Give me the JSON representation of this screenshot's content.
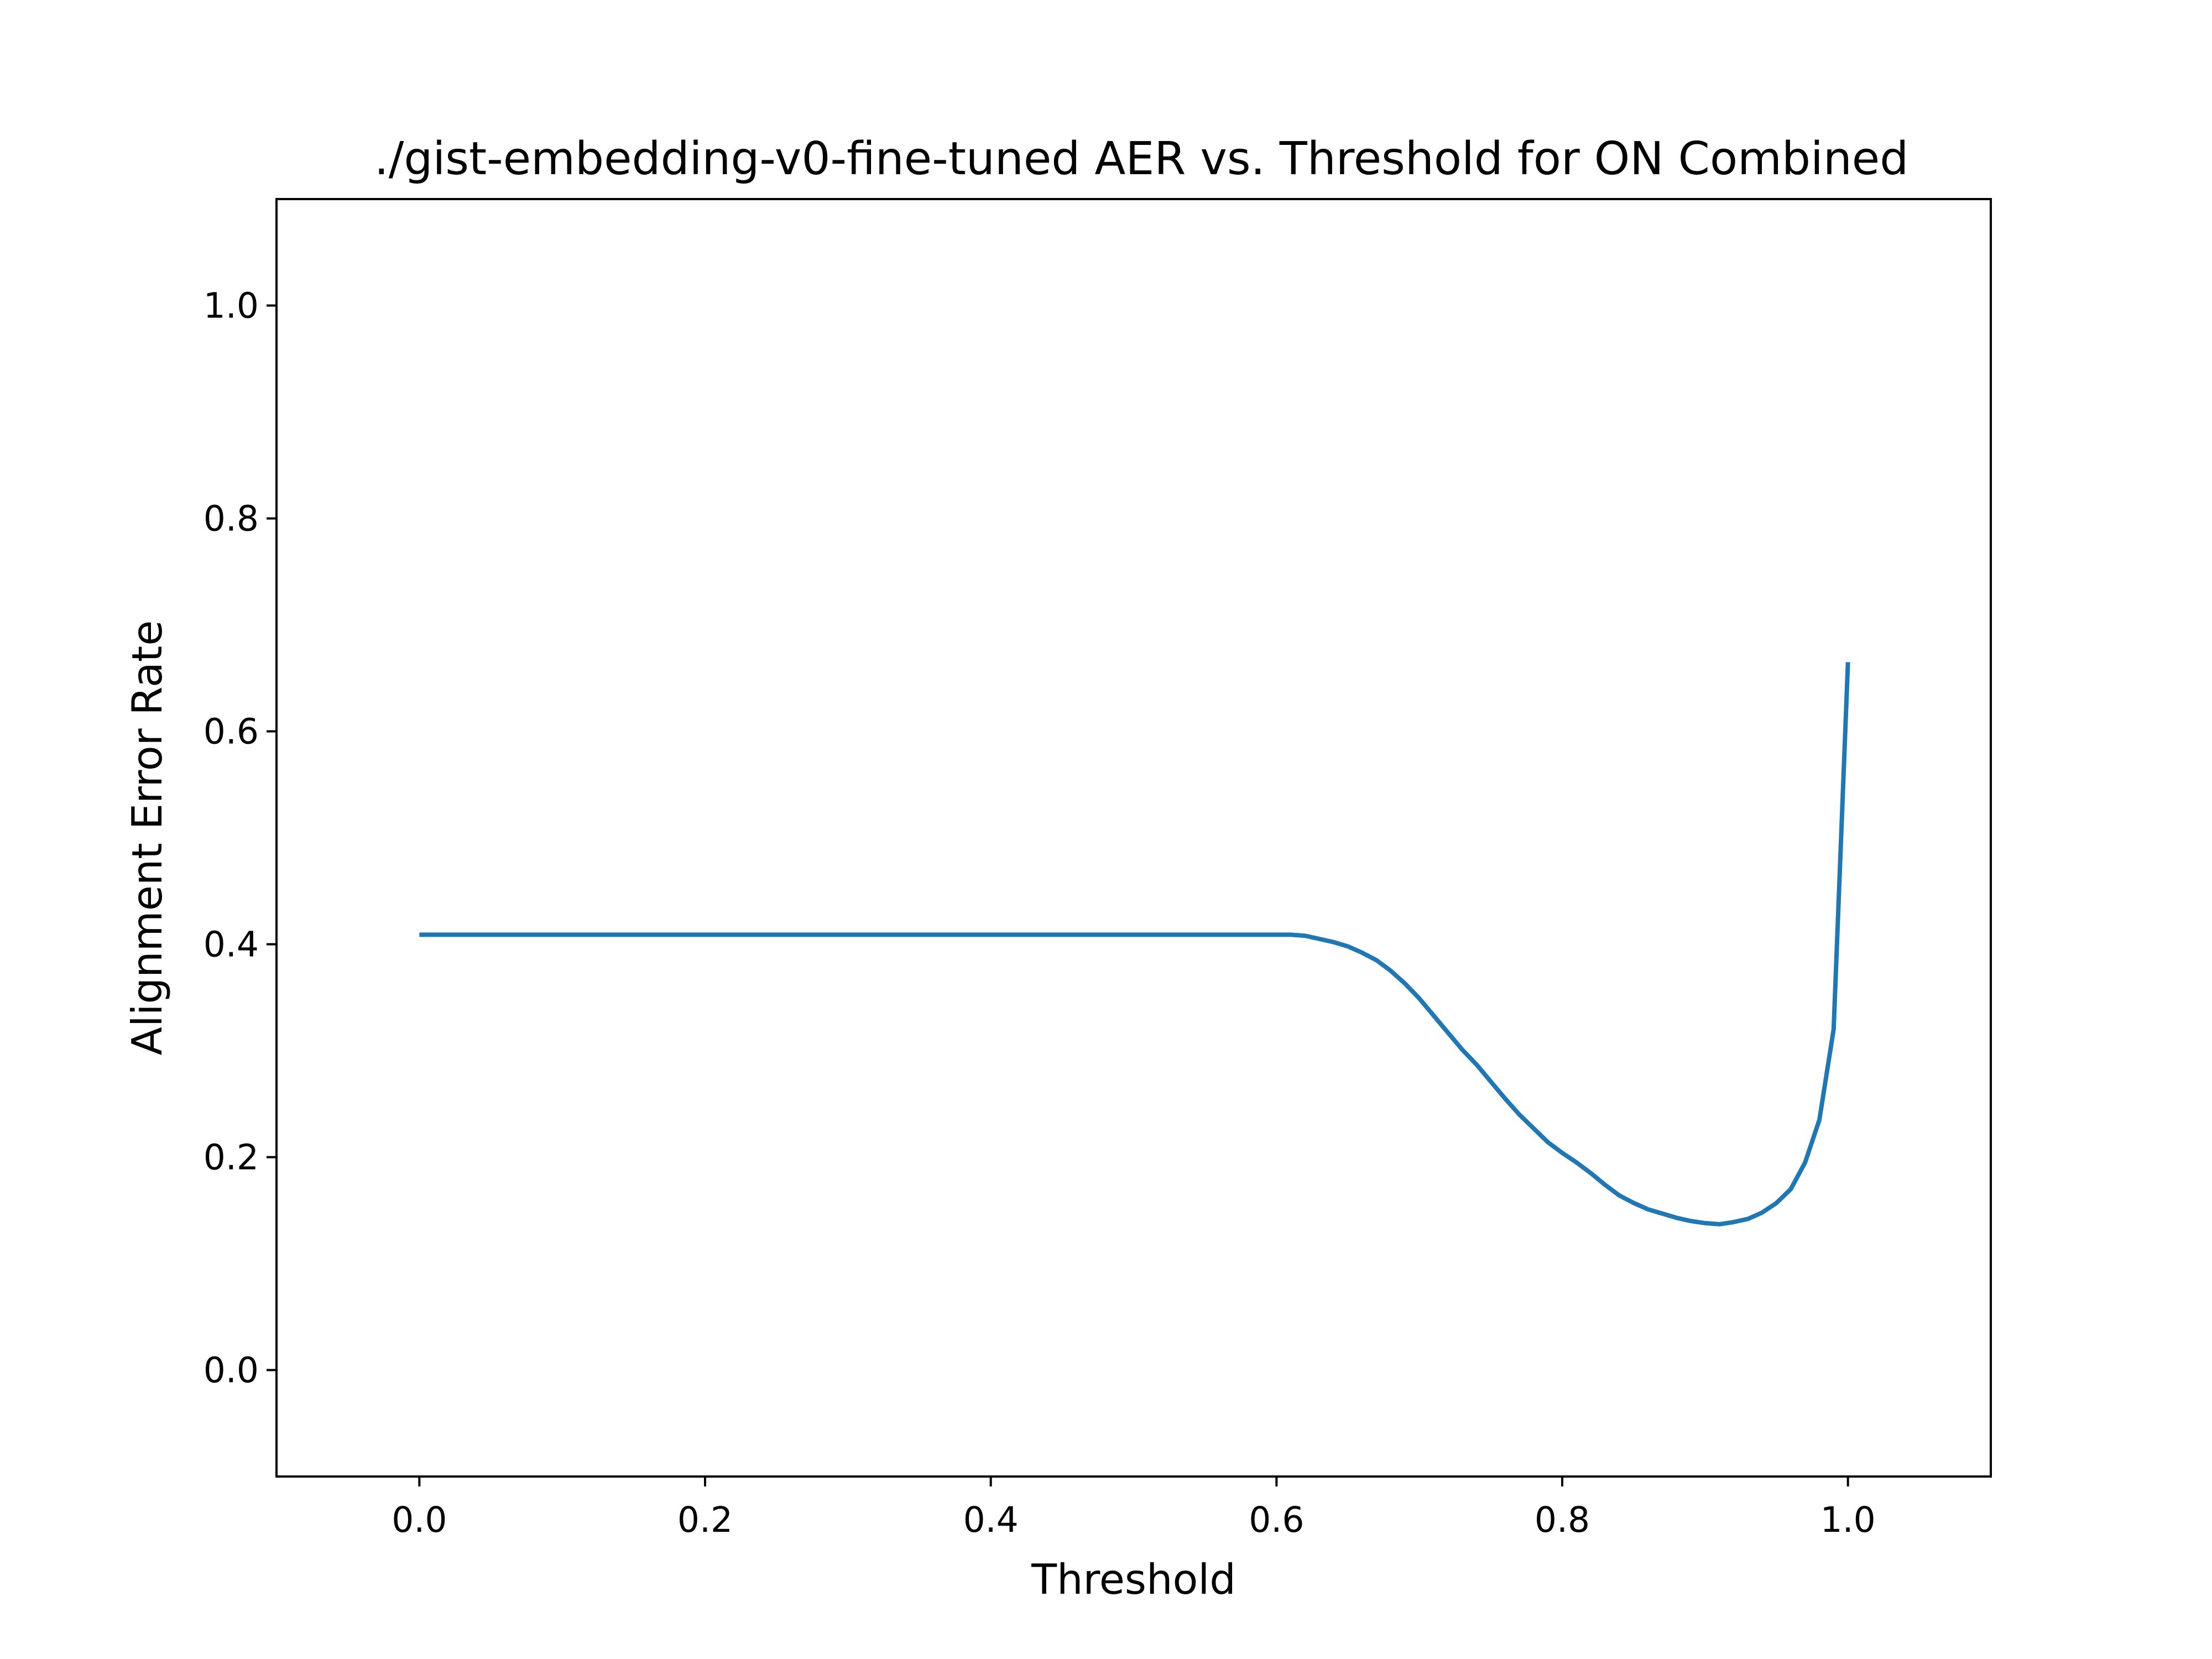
{
  "chart_data": {
    "type": "line",
    "title": "./gist-embedding-v0-fine-tuned AER vs. Threshold for ON Combined",
    "xlabel": "Threshold",
    "ylabel": "Alignment Error Rate",
    "xlim": [
      -0.1,
      1.1
    ],
    "ylim": [
      -0.1,
      1.1
    ],
    "xticks": [
      0.0,
      0.2,
      0.4,
      0.6,
      0.8,
      1.0
    ],
    "xtick_labels": [
      "0.0",
      "0.2",
      "0.4",
      "0.6",
      "0.8",
      "1.0"
    ],
    "yticks": [
      0.0,
      0.2,
      0.4,
      0.6,
      0.8,
      1.0
    ],
    "ytick_labels": [
      "0.0",
      "0.2",
      "0.4",
      "0.6",
      "0.8",
      "1.0"
    ],
    "grid": false,
    "series": [
      {
        "color": "#1f77b4",
        "x": [
          0.0,
          0.1,
          0.2,
          0.3,
          0.4,
          0.5,
          0.6,
          0.61,
          0.62,
          0.63,
          0.64,
          0.65,
          0.66,
          0.67,
          0.68,
          0.69,
          0.7,
          0.71,
          0.72,
          0.73,
          0.74,
          0.75,
          0.76,
          0.77,
          0.78,
          0.79,
          0.8,
          0.81,
          0.82,
          0.83,
          0.84,
          0.85,
          0.86,
          0.87,
          0.88,
          0.89,
          0.9,
          0.91,
          0.92,
          0.93,
          0.94,
          0.95,
          0.96,
          0.97,
          0.98,
          0.99,
          1.0
        ],
        "y": [
          0.409,
          0.409,
          0.409,
          0.409,
          0.409,
          0.409,
          0.409,
          0.409,
          0.408,
          0.405,
          0.402,
          0.398,
          0.392,
          0.385,
          0.375,
          0.363,
          0.349,
          0.333,
          0.317,
          0.301,
          0.287,
          0.271,
          0.255,
          0.24,
          0.227,
          0.214,
          0.204,
          0.195,
          0.185,
          0.174,
          0.164,
          0.157,
          0.151,
          0.147,
          0.143,
          0.14,
          0.138,
          0.137,
          0.139,
          0.142,
          0.148,
          0.157,
          0.17,
          0.195,
          0.235,
          0.32,
          0.665
        ]
      }
    ]
  }
}
